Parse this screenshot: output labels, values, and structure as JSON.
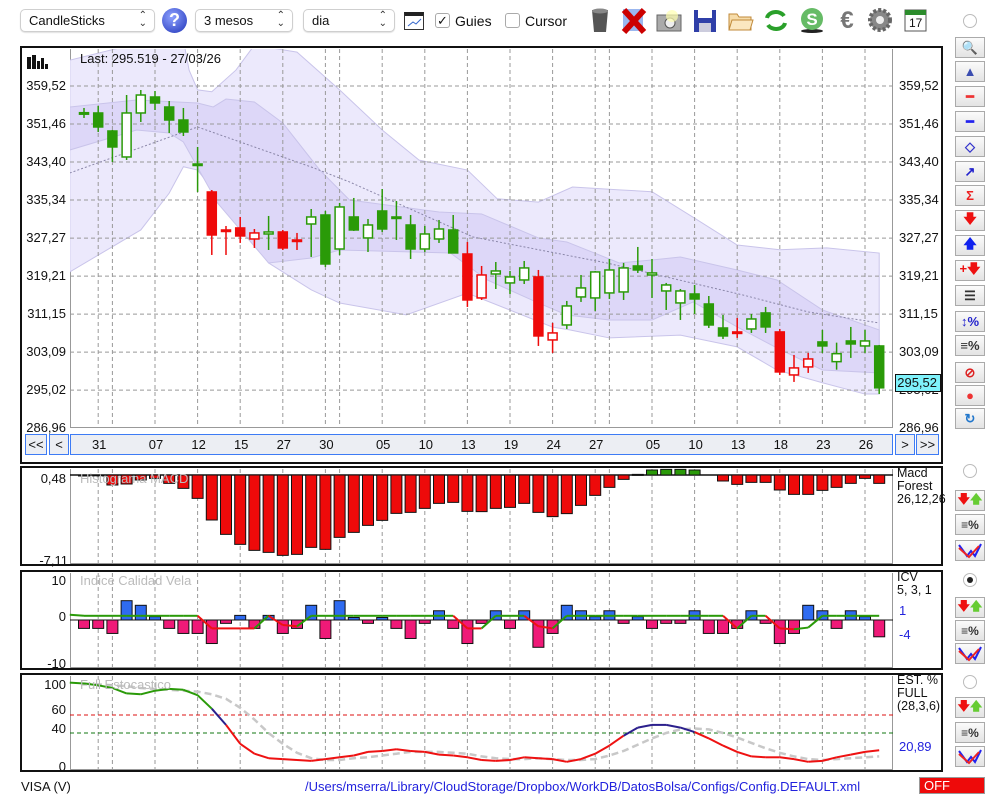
{
  "toolbar": {
    "chart_type": "CandleSticks",
    "period": "3 mesos",
    "interval": "dia",
    "guies_label": "Guies",
    "guies_checked": true,
    "cursor_label": "Cursor",
    "cursor_checked": false,
    "calendar_day": "17",
    "icons": [
      "help-icon",
      "chart-window-icon",
      "trash-icon",
      "delete-icon",
      "camera-icon",
      "save-icon",
      "folder-open-icon",
      "refresh-icon",
      "dollar-icon",
      "euro-icon",
      "gear-icon",
      "calendar-icon"
    ]
  },
  "main_chart": {
    "last_label": "Last: 295.519 - 27/03/26",
    "price_ticks": [
      "359,52",
      "351,46",
      "343,40",
      "335,34",
      "327,27",
      "319,21",
      "311,15",
      "303,09",
      "295,02",
      "286,96"
    ],
    "current_price": "295,52",
    "nav": {
      "first": "<<",
      "prev": "<",
      "next": ">",
      "last": ">>"
    },
    "colors": {
      "green": "#2a9a08",
      "red": "#ee0a0a",
      "band_outer": "#ece9fc",
      "band_inner": "#ddd7f8",
      "band_stroke": "#c9c4ea",
      "current_bg": "#7ff2fb"
    }
  },
  "chart_data": [
    {
      "type": "candlestick",
      "title": "VISA (V)",
      "ylim": [
        286.96,
        367.4
      ],
      "y_ticks": [
        359.52,
        351.46,
        343.4,
        335.34,
        327.27,
        319.21,
        311.15,
        303.09,
        295.02,
        286.96
      ],
      "x_ticks": [
        {
          "label": "31",
          "index": 1
        },
        {
          "label": "07",
          "index": 5
        },
        {
          "label": "12",
          "index": 8
        },
        {
          "label": "15",
          "index": 11
        },
        {
          "label": "27",
          "index": 14
        },
        {
          "label": "30",
          "index": 17
        },
        {
          "label": "05",
          "index": 21
        },
        {
          "label": "10",
          "index": 24
        },
        {
          "label": "13",
          "index": 27
        },
        {
          "label": "19",
          "index": 30
        },
        {
          "label": "24",
          "index": 33
        },
        {
          "label": "27",
          "index": 36
        },
        {
          "label": "05",
          "index": 40
        },
        {
          "label": "10",
          "index": 43
        },
        {
          "label": "13",
          "index": 46
        },
        {
          "label": "18",
          "index": 49
        },
        {
          "label": "23",
          "index": 52
        },
        {
          "label": "26",
          "index": 55
        }
      ],
      "grid_index": [
        1,
        2,
        5,
        8,
        11,
        14,
        17,
        18,
        21,
        24,
        27,
        30,
        33,
        36,
        37,
        40,
        43,
        46,
        49,
        52,
        55
      ],
      "ohlc_trend": [
        [
          353.86,
          354.86,
          352.74,
          353.86,
          "g"
        ],
        [
          353.8,
          355.28,
          349.77,
          350.83,
          "g"
        ],
        [
          349.98,
          350.19,
          343.41,
          346.59,
          "g"
        ],
        [
          344.47,
          357.61,
          343.83,
          353.8,
          "g"
        ],
        [
          353.8,
          358.67,
          351.89,
          357.61,
          "g"
        ],
        [
          357.19,
          358.46,
          354.43,
          355.92,
          "g"
        ],
        [
          355.07,
          356.34,
          349.56,
          352.31,
          "g"
        ],
        [
          352.31,
          354.86,
          348.92,
          349.77,
          "g"
        ],
        [
          342.98,
          346.59,
          337.05,
          342.98,
          "g"
        ],
        [
          337.05,
          337.47,
          323.69,
          327.93,
          "r"
        ],
        [
          328.99,
          329.84,
          323.69,
          328.99,
          "r"
        ],
        [
          329.42,
          331.75,
          326.24,
          327.72,
          "r"
        ],
        [
          327.08,
          329.2,
          325.18,
          328.36,
          "r"
        ],
        [
          328.14,
          331.96,
          324.75,
          328.57,
          "g"
        ],
        [
          328.57,
          328.99,
          324.75,
          325.18,
          "r"
        ],
        [
          326.87,
          328.36,
          324.75,
          326.87,
          "r"
        ],
        [
          330.26,
          333.44,
          323.27,
          331.75,
          "g"
        ],
        [
          332.17,
          333.02,
          321.15,
          321.78,
          "g"
        ],
        [
          324.96,
          334.72,
          323.69,
          333.87,
          "g"
        ],
        [
          331.75,
          335.78,
          328.78,
          328.99,
          "g"
        ],
        [
          327.3,
          331.32,
          324.33,
          330.05,
          "g"
        ],
        [
          333.02,
          337.68,
          328.57,
          329.2,
          "g"
        ],
        [
          331.75,
          335.14,
          326.87,
          331.75,
          "g"
        ],
        [
          330.05,
          332.17,
          322.84,
          324.96,
          "g"
        ],
        [
          324.96,
          329.84,
          324.33,
          328.14,
          "g"
        ],
        [
          327.08,
          331.11,
          326.24,
          329.2,
          "g"
        ],
        [
          328.99,
          332.17,
          324.12,
          324.12,
          "g"
        ],
        [
          323.9,
          326.45,
          312.67,
          314.15,
          "r"
        ],
        [
          314.58,
          321.36,
          314.15,
          319.45,
          "r"
        ],
        [
          319.66,
          322.2,
          316.48,
          320.3,
          "g"
        ],
        [
          317.76,
          320.3,
          315.42,
          319.03,
          "g"
        ],
        [
          318.39,
          322.42,
          317.54,
          320.94,
          "g"
        ],
        [
          319.03,
          320.51,
          304.4,
          306.52,
          "r"
        ],
        [
          305.67,
          309.28,
          302.92,
          307.16,
          "r"
        ],
        [
          308.85,
          313.94,
          308.0,
          312.88,
          "g"
        ],
        [
          314.79,
          319.45,
          313.73,
          316.7,
          "g"
        ],
        [
          314.58,
          320.3,
          311.82,
          320.09,
          "g"
        ],
        [
          315.64,
          322.84,
          314.36,
          320.51,
          "g"
        ],
        [
          315.85,
          322.0,
          314.15,
          320.94,
          "g"
        ],
        [
          321.36,
          325.39,
          319.88,
          320.51,
          "g"
        ],
        [
          319.45,
          322.84,
          314.58,
          319.88,
          "g"
        ],
        [
          316.06,
          317.76,
          312.03,
          317.33,
          "g"
        ],
        [
          313.52,
          316.48,
          309.91,
          316.06,
          "g"
        ],
        [
          315.42,
          317.33,
          311.18,
          314.36,
          "g"
        ],
        [
          313.3,
          314.99,
          308.21,
          308.85,
          "g"
        ],
        [
          308.21,
          310.97,
          305.88,
          306.52,
          "g"
        ],
        [
          307.37,
          310.33,
          306.1,
          307.37,
          "r"
        ],
        [
          308.0,
          311.18,
          307.16,
          310.12,
          "g"
        ],
        [
          311.4,
          312.67,
          307.16,
          308.43,
          "g"
        ],
        [
          307.37,
          308.0,
          298.25,
          298.89,
          "r"
        ],
        [
          298.25,
          302.49,
          296.77,
          299.74,
          "r"
        ],
        [
          299.95,
          302.92,
          298.68,
          301.64,
          "r"
        ],
        [
          305.25,
          307.79,
          302.92,
          304.4,
          "g"
        ],
        [
          301.07,
          305.1,
          299.37,
          302.76,
          "g"
        ],
        [
          305.46,
          308.43,
          301.86,
          304.82,
          "g"
        ],
        [
          304.4,
          307.79,
          302.92,
          305.46,
          "g"
        ],
        [
          304.4,
          304.61,
          294.22,
          295.52,
          "g"
        ]
      ],
      "band_outer_upper": [
        [
          -1,
          365.0
        ],
        [
          2.5,
          367.6
        ],
        [
          7,
          369.3
        ],
        [
          7.4,
          362.9
        ],
        [
          8,
          358.7
        ],
        [
          9,
          358.3
        ],
        [
          10.7,
          362.9
        ],
        [
          12,
          368.2
        ],
        [
          15,
          366.7
        ],
        [
          18,
          358.7
        ],
        [
          21,
          350.2
        ],
        [
          23.6,
          343.8
        ],
        [
          27,
          341.7
        ],
        [
          29.1,
          335.6
        ],
        [
          32,
          334.9
        ],
        [
          34.4,
          338.1
        ],
        [
          37.7,
          337.5
        ],
        [
          40,
          337.1
        ],
        [
          43,
          331.5
        ],
        [
          46,
          325.8
        ],
        [
          49,
          324.8
        ],
        [
          52.3,
          325.2
        ],
        [
          56,
          324.1
        ]
      ],
      "band_outer_lower": [
        [
          -1,
          320.1
        ],
        [
          4,
          329.0
        ],
        [
          6,
          336.8
        ],
        [
          7,
          342.4
        ],
        [
          8,
          341.7
        ],
        [
          13,
          322.0
        ],
        [
          16,
          316.3
        ],
        [
          18,
          313.5
        ],
        [
          22.7,
          311.0
        ],
        [
          27,
          315.6
        ],
        [
          33,
          308.4
        ],
        [
          34.2,
          307.8
        ],
        [
          37,
          306.1
        ],
        [
          42,
          306.7
        ],
        [
          46,
          304.2
        ],
        [
          48.8,
          299.3
        ],
        [
          52,
          296.6
        ],
        [
          55,
          294.2
        ],
        [
          56,
          294.2
        ]
      ],
      "band_inner_upper": [
        [
          -1,
          355.07
        ],
        [
          3.7,
          356.55
        ],
        [
          8,
          355.92
        ],
        [
          9.1,
          355.07
        ],
        [
          10,
          356.76
        ],
        [
          12,
          356.13
        ],
        [
          14,
          351.68
        ],
        [
          16.6,
          341.71
        ],
        [
          18.7,
          335.35
        ],
        [
          25,
          332.81
        ],
        [
          28,
          332.39
        ],
        [
          32,
          327.3
        ],
        [
          34,
          326.45
        ],
        [
          37.7,
          322.0
        ],
        [
          40,
          322.63
        ],
        [
          42,
          323.27
        ],
        [
          46,
          320.51
        ],
        [
          48.8,
          318.39
        ],
        [
          52,
          312.03
        ],
        [
          56,
          307.79
        ]
      ],
      "band_inner_lower": [
        [
          -1,
          345.95
        ],
        [
          3.7,
          350.19
        ],
        [
          6,
          349.56
        ],
        [
          7,
          347.65
        ],
        [
          9.4,
          334.72
        ],
        [
          13,
          322.0
        ],
        [
          16,
          323.05
        ],
        [
          18,
          324.75
        ],
        [
          25.8,
          324.12
        ],
        [
          28.4,
          318.39
        ],
        [
          32,
          313.52
        ],
        [
          34,
          310.97
        ],
        [
          37,
          309.91
        ],
        [
          40,
          309.9
        ],
        [
          42.9,
          313.73
        ],
        [
          46,
          308.43
        ],
        [
          48.8,
          303.98
        ],
        [
          52,
          299.31
        ],
        [
          56,
          298.68
        ]
      ],
      "moving_average": [
        [
          -1,
          341.08
        ],
        [
          8,
          350.83
        ],
        [
          16,
          342.35
        ],
        [
          18.7,
          339.17
        ],
        [
          27.4,
          327.51
        ],
        [
          36.8,
          322.0
        ],
        [
          46.4,
          315.21
        ],
        [
          51,
          311.61
        ],
        [
          56,
          309.28
        ]
      ]
    },
    {
      "type": "bar",
      "title": "Histograma MACD",
      "ylim": [
        -7.11,
        0.48
      ],
      "y_tick_labels": [
        "0,48",
        "-7,11"
      ],
      "values": [
        -0.05,
        -0.05,
        -0.8,
        -0.72,
        -0.4,
        -0.27,
        -0.67,
        -1.07,
        -1.87,
        -3.6,
        -4.75,
        -5.55,
        -6.03,
        -6.19,
        -6.43,
        -6.35,
        -5.79,
        -5.95,
        -4.99,
        -4.59,
        -4.03,
        -3.63,
        -3.07,
        -2.99,
        -2.67,
        -2.27,
        -2.19,
        -2.91,
        -2.93,
        -2.67,
        -2.59,
        -2.27,
        -2.99,
        -3.33,
        -3.09,
        -2.43,
        -1.63,
        -0.99,
        -0.35,
        0.05,
        0.4,
        0.45,
        0.45,
        0.4,
        0,
        -0.48,
        -0.75,
        -0.59,
        -0.59,
        -1.2,
        -1.55,
        -1.55,
        -1.23,
        -0.99,
        -0.67,
        -0.27,
        -0.67
      ],
      "legend": [
        "Macd",
        "Forest",
        "26,12,26"
      ]
    },
    {
      "type": "bar",
      "title": "Indice Calidad Vela",
      "ylim": [
        -10,
        10
      ],
      "y_tick_labels": [
        "10",
        "0",
        "-10"
      ],
      "values": [
        -2,
        -2,
        -3.2,
        4.6,
        3.5,
        0.8,
        -2,
        -3.2,
        -3.2,
        -5.6,
        -0.8,
        1.1,
        -2,
        1.1,
        -3.2,
        -2,
        3.5,
        -4.4,
        4.6,
        0.6,
        -0.8,
        0.6,
        -2,
        -4.4,
        -0.8,
        2.2,
        -2,
        -5.6,
        -0.8,
        2.2,
        -2,
        2.2,
        -6.5,
        -3.2,
        3.5,
        2.2,
        0.8,
        2.2,
        -0.8,
        0.8,
        -2,
        -0.8,
        -0.8,
        2.2,
        -3.2,
        -3.2,
        -2,
        2.2,
        -0.8,
        -5.6,
        -3.2,
        3.5,
        2.2,
        -2,
        2.2,
        0.8,
        -4
      ],
      "signal": [
        1,
        1,
        1,
        1,
        1,
        1,
        1,
        1,
        1,
        -2,
        -2,
        -2,
        -2,
        1,
        -1.2,
        -1.5,
        1,
        1,
        1,
        1,
        1,
        1,
        1,
        1,
        1,
        1,
        1,
        -2,
        -2,
        1,
        1,
        1,
        -1.5,
        -2,
        1,
        1,
        1,
        1,
        1,
        1,
        1,
        1,
        1,
        1,
        1,
        1,
        -2,
        1,
        1,
        -2,
        -2.2,
        -1.8,
        1,
        1,
        1,
        1,
        1
      ],
      "legend": [
        "ICV",
        "5, 3, 1"
      ],
      "last_signal": "1",
      "last_value": "-4"
    },
    {
      "type": "line",
      "title": "Full Estocastico",
      "ylim": [
        0,
        100
      ],
      "y_tick_labels": [
        "100",
        "60",
        "40",
        "0"
      ],
      "levels": [
        60,
        40
      ],
      "k": [
        95,
        93,
        90,
        84,
        83,
        87,
        89,
        88,
        82,
        67,
        49,
        28,
        17,
        12,
        11,
        10,
        9,
        11,
        13,
        15,
        19,
        20,
        22,
        20,
        19,
        16,
        15,
        13,
        10,
        9,
        10,
        13,
        12,
        11,
        8,
        11,
        17,
        26,
        37,
        46,
        49,
        49,
        46,
        41,
        34,
        26,
        19,
        14,
        13,
        13,
        11,
        8,
        9,
        13,
        16,
        19,
        20.89
      ],
      "d": [
        95,
        94,
        93,
        92,
        90,
        89,
        88,
        87,
        86,
        83,
        78,
        68,
        55,
        40,
        28,
        18,
        12,
        10,
        10,
        12,
        13,
        15,
        17,
        19,
        19,
        19,
        18,
        17,
        14,
        12,
        11,
        11,
        12,
        11,
        10,
        10,
        11,
        15,
        20,
        27,
        34,
        40,
        44,
        45,
        44,
        40,
        35,
        29,
        23,
        18,
        14,
        11,
        10,
        11,
        12,
        13,
        14
      ],
      "legend": [
        "EST. %",
        "FULL",
        "(28,3,6)"
      ],
      "last_value": "20,89"
    }
  ],
  "sidebar": {
    "buttons": [
      "zoom-button",
      "overview-button",
      "red-line-button",
      "blue-line-button",
      "channel-button",
      "fibonacci-button",
      "sigma-button",
      "sell-signal-button",
      "buy-signal-button",
      "add-signal-button",
      "levels-button",
      "range-percent-button",
      "lines-percent-button",
      "clear-button",
      "record-button",
      "sync-button"
    ]
  },
  "status": {
    "symbol": "VISA (V)",
    "path": "/Users/mserra/Library/CloudStorage/Dropbox/WorkDB/DatosBolsa/Configs/Config.DEFAULT.xml",
    "state": "OFF"
  }
}
